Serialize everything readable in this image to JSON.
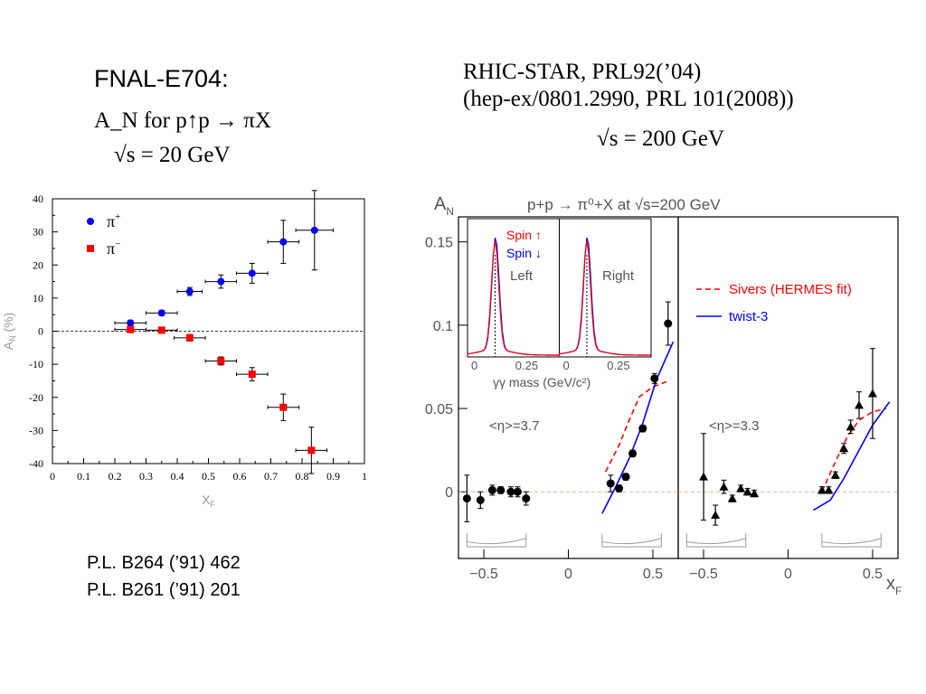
{
  "texts": {
    "fnal_title": "FNAL-E704:",
    "fnal_sub1": "A_N for p↑p → πX",
    "fnal_sub2": "√s = 20 GeV",
    "star_title1": "RHIC-STAR, PRL92(’04)",
    "star_title2": "(hep-ex/0801.2990, PRL 101(2008))",
    "star_energy": "√s = 200 GeV",
    "ref1": "P.L. B264 (’91) 462",
    "ref2": "P.L. B261 (’91) 201"
  },
  "colors": {
    "pi_plus": "#0000ff",
    "pi_minus": "#ff0000",
    "sivers": "#ff0000",
    "twist3": "#0000ff"
  },
  "chart_data": [
    {
      "type": "scatter",
      "name": "FNAL-E704",
      "xlabel": "x_F",
      "ylabel": "A_N (%)",
      "xlim": [
        0,
        1
      ],
      "ylim": [
        -40,
        40
      ],
      "xticks": [
        0,
        0.1,
        0.2,
        0.3,
        0.4,
        0.5,
        0.6,
        0.7,
        0.8,
        0.9,
        1
      ],
      "xtick_labels": [
        "0",
        "0.1",
        "0.2",
        "0.3",
        "0.4",
        "0.5",
        "0.6",
        "0.7",
        "0.8",
        "0.9",
        "1"
      ],
      "yticks": [
        -40,
        -30,
        -20,
        -10,
        0,
        10,
        20,
        30,
        40
      ],
      "ytick_labels": [
        "-40",
        "-30",
        "-20",
        "-10",
        "0",
        "10",
        "20",
        "30",
        "40"
      ],
      "legend_placement": "top-left",
      "series": [
        {
          "name": "π+",
          "marker": "circle",
          "color": "#0000ff",
          "points": [
            {
              "x": 0.25,
              "y": 2.5,
              "xerr": 0.05,
              "yerr": 0.8
            },
            {
              "x": 0.35,
              "y": 5.5,
              "xerr": 0.05,
              "yerr": 0.8
            },
            {
              "x": 0.44,
              "y": 12,
              "xerr": 0.04,
              "yerr": 1.2
            },
            {
              "x": 0.54,
              "y": 15,
              "xerr": 0.05,
              "yerr": 2
            },
            {
              "x": 0.64,
              "y": 17.5,
              "xerr": 0.05,
              "yerr": 3
            },
            {
              "x": 0.74,
              "y": 27,
              "xerr": 0.05,
              "yerr": 6.5
            },
            {
              "x": 0.84,
              "y": 30.5,
              "xerr": 0.06,
              "yerr": 12
            }
          ]
        },
        {
          "name": "π−",
          "marker": "square",
          "color": "#ff0000",
          "points": [
            {
              "x": 0.25,
              "y": 0.5,
              "xerr": 0.05,
              "yerr": 0.8
            },
            {
              "x": 0.35,
              "y": 0.3,
              "xerr": 0.05,
              "yerr": 0.8
            },
            {
              "x": 0.44,
              "y": -2,
              "xerr": 0.05,
              "yerr": 1
            },
            {
              "x": 0.54,
              "y": -9,
              "xerr": 0.05,
              "yerr": 1.2
            },
            {
              "x": 0.64,
              "y": -13,
              "xerr": 0.05,
              "yerr": 2
            },
            {
              "x": 0.74,
              "y": -23,
              "xerr": 0.05,
              "yerr": 4
            },
            {
              "x": 0.83,
              "y": -36,
              "xerr": 0.05,
              "yerr": 7
            }
          ]
        }
      ]
    },
    {
      "type": "scatter",
      "name": "RHIC-STAR",
      "title": "p+p → π⁰+X at √s=200 GeV",
      "ylabel": "A_N",
      "xlabel": "x_F",
      "ylim": [
        -0.04,
        0.165
      ],
      "yticks": [
        0,
        0.05,
        0.1,
        0.15
      ],
      "ytick_labels": [
        "0",
        "0.05",
        "0.1",
        "0.15"
      ],
      "panels": [
        {
          "label": "<η>=3.7",
          "xlim": [
            -0.65,
            0.65
          ],
          "xticks": [
            -0.5,
            0,
            0.5
          ],
          "xtick_labels": [
            "−0.5",
            "0",
            "0.5"
          ],
          "marker": "circle",
          "points": [
            {
              "x": -0.6,
              "y": -0.004,
              "yerr": 0.014
            },
            {
              "x": -0.52,
              "y": -0.005,
              "yerr": 0.005
            },
            {
              "x": -0.45,
              "y": 0.001,
              "yerr": 0.003
            },
            {
              "x": -0.4,
              "y": 0.001,
              "yerr": 0.002
            },
            {
              "x": -0.34,
              "y": 0,
              "yerr": 0.003
            },
            {
              "x": -0.3,
              "y": 0,
              "yerr": 0.003
            },
            {
              "x": -0.25,
              "y": -0.004,
              "yerr": 0.004
            },
            {
              "x": 0.25,
              "y": 0.005,
              "yerr": 0.005
            },
            {
              "x": 0.3,
              "y": 0.002,
              "yerr": 0.002
            },
            {
              "x": 0.34,
              "y": 0.009,
              "yerr": 0.002
            },
            {
              "x": 0.38,
              "y": 0.023,
              "yerr": 0.002
            },
            {
              "x": 0.44,
              "y": 0.038,
              "yerr": 0.002
            },
            {
              "x": 0.51,
              "y": 0.068,
              "yerr": 0.003
            },
            {
              "x": 0.59,
              "y": 0.101,
              "yerr": 0.013
            }
          ],
          "curves": [
            {
              "name": "Sivers (HERMES fit)",
              "style": "dashed",
              "color": "#ff0000",
              "x": [
                0.22,
                0.3,
                0.36,
                0.42,
                0.5,
                0.58
              ],
              "y": [
                0.012,
                0.028,
                0.043,
                0.057,
                0.063,
                0.066
              ]
            },
            {
              "name": "twist-3",
              "style": "solid",
              "color": "#0000ff",
              "x": [
                0.2,
                0.28,
                0.36,
                0.44,
                0.52,
                0.62
              ],
              "y": [
                -0.013,
                0.003,
                0.02,
                0.041,
                0.067,
                0.09
              ]
            }
          ]
        },
        {
          "label": "<η>=3.3",
          "xlim": [
            -0.65,
            0.65
          ],
          "xticks": [
            -0.5,
            0,
            0.5
          ],
          "xtick_labels": [
            "−0.5",
            "0",
            "0.5"
          ],
          "marker": "triangle",
          "points": [
            {
              "x": -0.5,
              "y": 0.009,
              "yerr": 0.026
            },
            {
              "x": -0.43,
              "y": -0.014,
              "yerr": 0.006
            },
            {
              "x": -0.38,
              "y": 0.003,
              "yerr": 0.004
            },
            {
              "x": -0.33,
              "y": -0.004,
              "yerr": 0.002
            },
            {
              "x": -0.28,
              "y": 0.002,
              "yerr": 0.002
            },
            {
              "x": -0.24,
              "y": 0,
              "yerr": 0.002
            },
            {
              "x": -0.2,
              "y": -0.001,
              "yerr": 0.002
            },
            {
              "x": 0.2,
              "y": 0.001,
              "yerr": 0.002
            },
            {
              "x": 0.24,
              "y": 0.001,
              "yerr": 0.002
            },
            {
              "x": 0.28,
              "y": 0.01,
              "yerr": 0.002
            },
            {
              "x": 0.33,
              "y": 0.026,
              "yerr": 0.003
            },
            {
              "x": 0.37,
              "y": 0.039,
              "yerr": 0.004
            },
            {
              "x": 0.42,
              "y": 0.052,
              "yerr": 0.008
            },
            {
              "x": 0.5,
              "y": 0.059,
              "yerr": 0.027
            }
          ],
          "curves": [
            {
              "name": "Sivers (HERMES fit)",
              "style": "dashed",
              "color": "#ff0000",
              "x": [
                0.2,
                0.28,
                0.35,
                0.42,
                0.5,
                0.58
              ],
              "y": [
                0.0,
                0.018,
                0.033,
                0.043,
                0.048,
                0.05
              ]
            },
            {
              "name": "twist-3",
              "style": "solid",
              "color": "#0000ff",
              "x": [
                0.15,
                0.25,
                0.33,
                0.42,
                0.5,
                0.6
              ],
              "y": [
                -0.011,
                -0.005,
                0.008,
                0.025,
                0.04,
                0.054
              ]
            }
          ]
        }
      ],
      "legend": [
        {
          "label": "Sivers (HERMES fit)",
          "style": "dashed",
          "color": "#ff0000"
        },
        {
          "label": "twist-3",
          "style": "solid",
          "color": "#0000ff"
        }
      ],
      "inset": {
        "xlabel": "γγ mass (GeV/c²)",
        "xtick_labels": [
          "0",
          "0.25",
          "0",
          "0.25"
        ],
        "labels": {
          "left": "Left",
          "right": "Right",
          "spin_up": "Spin ↑",
          "spin_down": "Spin ↓"
        }
      }
    }
  ]
}
